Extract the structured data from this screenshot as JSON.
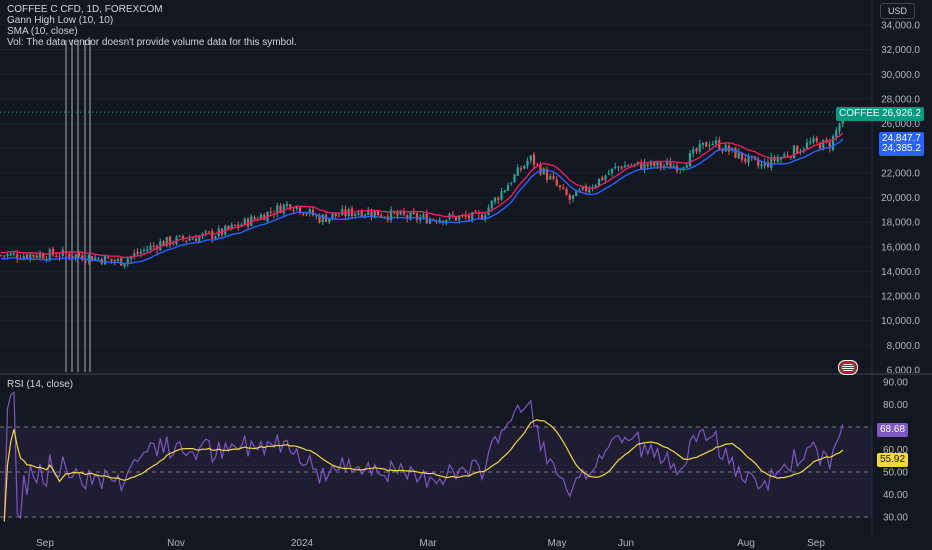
{
  "legend": {
    "symbol": "COFFEE C CFD, 1D, FOREXCOM",
    "gann": "Gann High Low (10, 10)",
    "sma": "SMA (10, close)",
    "vol": "Vol: The data vendor doesn't provide volume data for this symbol."
  },
  "rsi": {
    "title": "RSI (14, close)"
  },
  "header": {
    "currency": "USD"
  },
  "tags": {
    "symbol_label": "COFFEE",
    "last_price": "26,926.2",
    "gann_value": "24,847.7",
    "sma_value": "24,385.2",
    "rsi_value": "68.68",
    "rsi_ma_value": "55.92"
  },
  "colors": {
    "background": "#131722",
    "up": "#26a69a",
    "down": "#ef5350",
    "sma": "#2962ff",
    "gann": "#e91e63",
    "rsi": "#7e57c2",
    "rsi_ma": "#f5d742",
    "price_tag": "#089981"
  },
  "chart_data": [
    {
      "type": "candlestick",
      "y_ticks": [
        "34,000.0",
        "32,000.0",
        "30,000.0",
        "28,000.0",
        "26,000.0",
        "24,000.0",
        "22,000.0",
        "20,000.0",
        "18,000.0",
        "16,000.0",
        "14,000.0",
        "12,000.0",
        "10,000.0",
        "8,000.0",
        "6,000.0"
      ],
      "ylim": [
        6000,
        35000
      ],
      "x_labels": [
        "Sep",
        "Nov",
        "2024",
        "Mar",
        "May",
        "Jun",
        "Aug",
        "Sep"
      ],
      "last_price": 26926.2,
      "trend": [
        {
          "x": 0,
          "y": 15300
        },
        {
          "x": 70,
          "y": 15400
        },
        {
          "x": 120,
          "y": 14800
        },
        {
          "x": 160,
          "y": 16300
        },
        {
          "x": 220,
          "y": 17100
        },
        {
          "x": 290,
          "y": 19500
        },
        {
          "x": 320,
          "y": 18300
        },
        {
          "x": 360,
          "y": 18900
        },
        {
          "x": 420,
          "y": 18300
        },
        {
          "x": 480,
          "y": 18400
        },
        {
          "x": 530,
          "y": 23200
        },
        {
          "x": 570,
          "y": 19800
        },
        {
          "x": 620,
          "y": 22600
        },
        {
          "x": 680,
          "y": 22600
        },
        {
          "x": 710,
          "y": 24600
        },
        {
          "x": 760,
          "y": 22500
        },
        {
          "x": 810,
          "y": 24400
        },
        {
          "x": 830,
          "y": 24300
        },
        {
          "x": 845,
          "y": 26900
        }
      ]
    },
    {
      "type": "line",
      "title": "RSI (14, close)",
      "y_ticks": [
        "90.00",
        "80.00",
        "70.00",
        "60.00",
        "50.00",
        "40.00",
        "30.00"
      ],
      "ylim": [
        27,
        90
      ],
      "bands": [
        30,
        50,
        70
      ],
      "last_value": 68.68,
      "ma_last_value": 55.92
    }
  ]
}
